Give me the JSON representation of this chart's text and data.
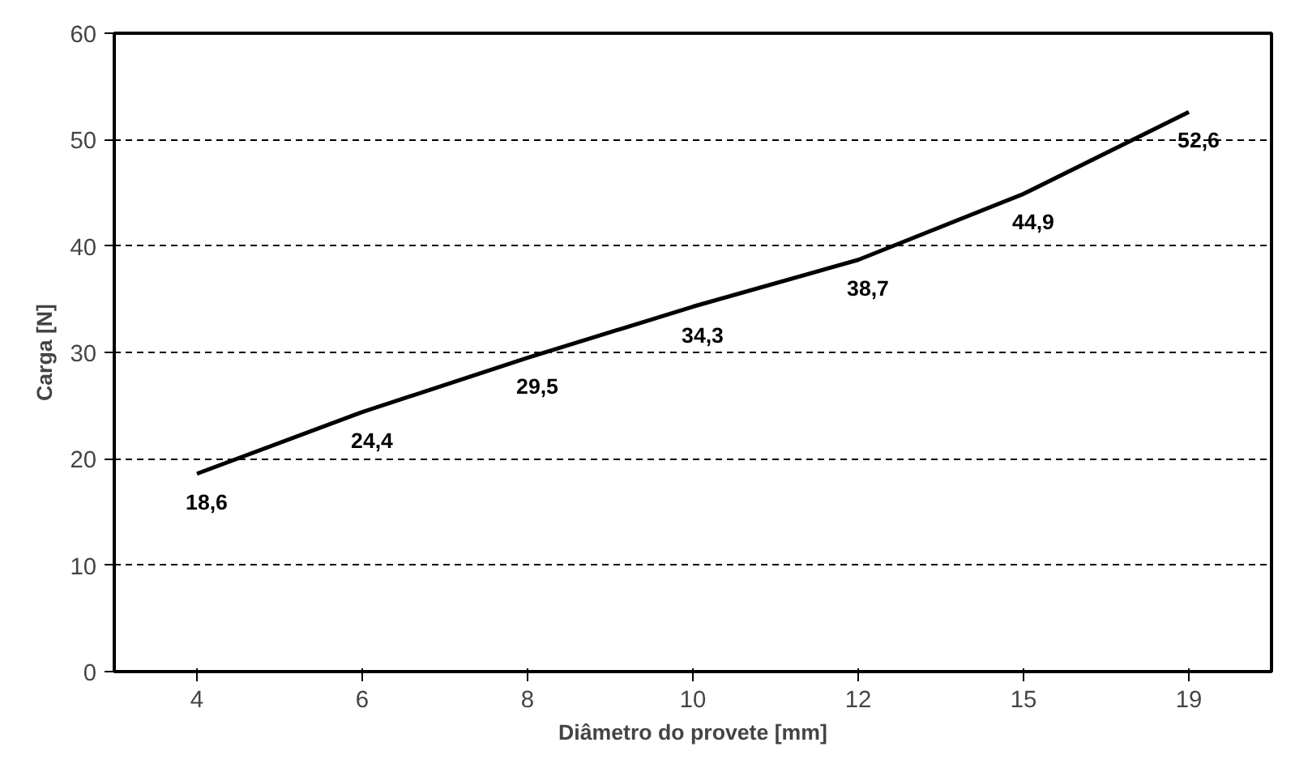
{
  "chart_data": {
    "type": "line",
    "xlabel": "Diâmetro do provete [mm]",
    "ylabel": "Carga [N]",
    "categories": [
      "4",
      "6",
      "8",
      "10",
      "12",
      "15",
      "19"
    ],
    "series": [
      {
        "color": "#000000",
        "values": [
          18.6,
          24.4,
          29.5,
          34.3,
          38.7,
          44.9,
          52.6
        ],
        "value_labels": [
          "18,6",
          "24,4",
          "29,5",
          "34,3",
          "38,7",
          "44,9",
          "52,6"
        ]
      }
    ],
    "ylim": [
      0,
      60
    ],
    "yticks": [
      0,
      10,
      20,
      30,
      40,
      50,
      60
    ],
    "grid": "y",
    "line_style": "solid",
    "marker": "none"
  }
}
